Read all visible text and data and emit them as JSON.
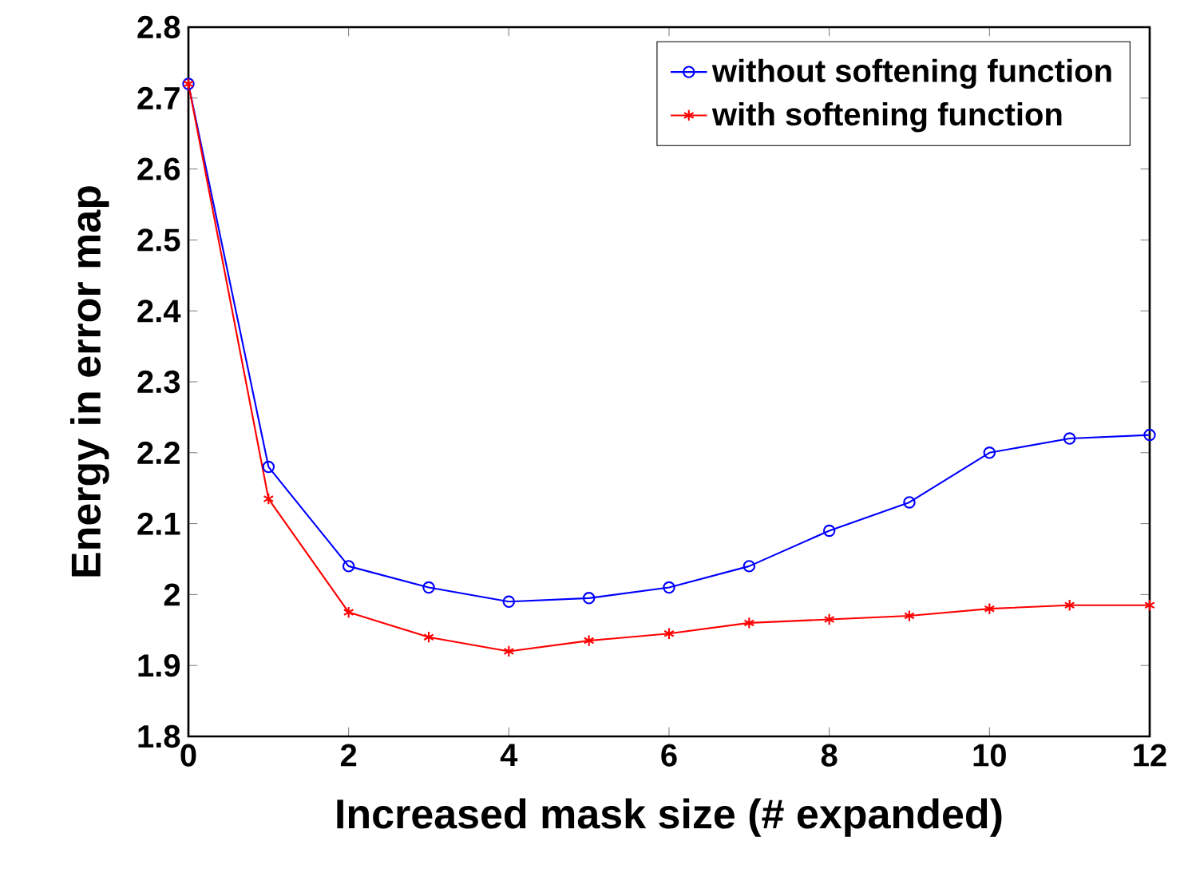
{
  "chart_data": {
    "type": "line",
    "xlabel": "Increased mask size (# expanded)",
    "ylabel": "Energy in error map",
    "x": [
      0,
      1,
      2,
      3,
      4,
      5,
      6,
      7,
      8,
      9,
      10,
      11,
      12
    ],
    "series": [
      {
        "name": "without softening function",
        "color": "#0000ff",
        "marker": "circle",
        "values": [
          2.72,
          2.18,
          2.04,
          2.01,
          1.99,
          1.995,
          2.01,
          2.04,
          2.09,
          2.13,
          2.2,
          2.22,
          2.225
        ]
      },
      {
        "name": "with softening function",
        "color": "#ff0000",
        "marker": "cross",
        "values": [
          2.72,
          2.135,
          1.975,
          1.94,
          1.92,
          1.935,
          1.945,
          1.96,
          1.965,
          1.97,
          1.98,
          1.985,
          1.985
        ]
      }
    ],
    "xlim": [
      0,
      12
    ],
    "xticks": [
      0,
      2,
      4,
      6,
      8,
      10,
      12
    ],
    "ylim": [
      1.8,
      2.8
    ],
    "yticks": [
      1.8,
      1.9,
      2,
      2.1,
      2.2,
      2.3,
      2.4,
      2.5,
      2.6,
      2.7,
      2.8
    ],
    "legend": "top right",
    "grid": false,
    "line_style": "solid"
  }
}
